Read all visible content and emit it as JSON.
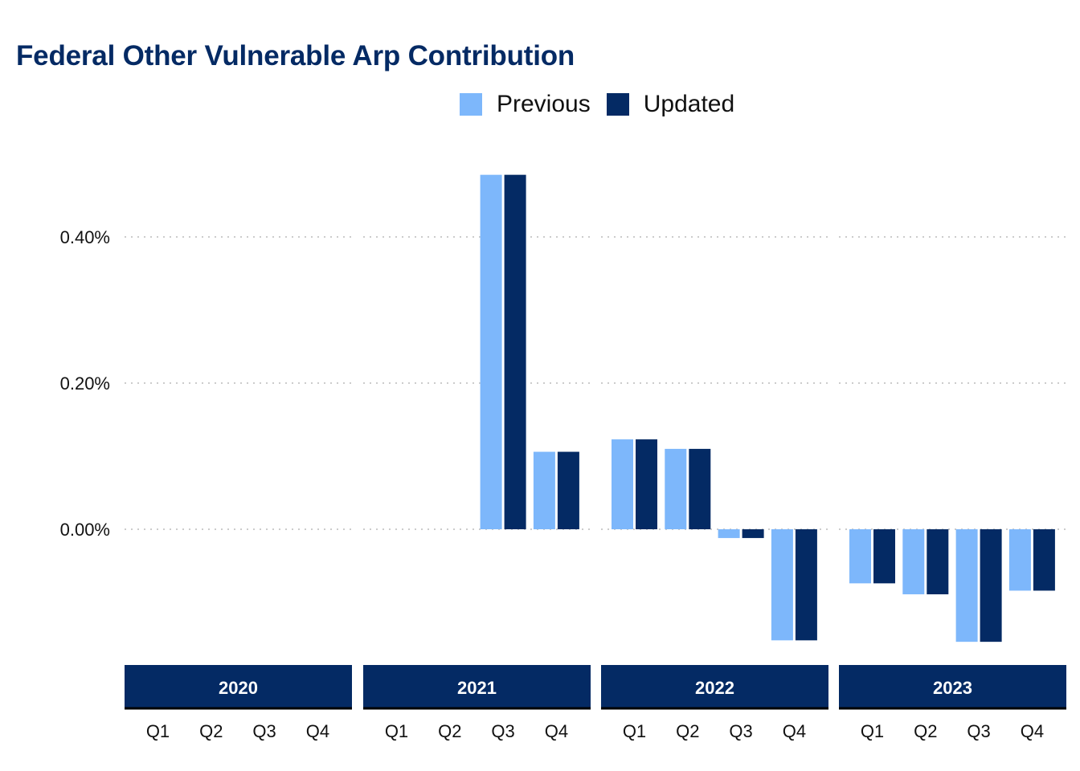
{
  "title": "Federal Other Vulnerable Arp Contribution",
  "colors": {
    "previous": "#7db7fb",
    "updated": "#042a64",
    "strip": "#042a64",
    "grid": "#cccccc",
    "title": "#042a64"
  },
  "chart_data": {
    "type": "bar",
    "title": "Federal Other Vulnerable Arp Contribution",
    "legend": {
      "placement": "top",
      "entries": [
        "Previous",
        "Updated"
      ]
    },
    "y_tick_labels": [
      "0.40%",
      "0.20%",
      "0.00%"
    ],
    "y_ticks": [
      0.4,
      0.2,
      0.0
    ],
    "ylim": [
      -0.17,
      0.5
    ],
    "grid": "horizontal dotted",
    "quarters": [
      "Q1",
      "Q2",
      "Q3",
      "Q4"
    ],
    "panels": [
      {
        "year": "2020",
        "previous": [
          null,
          null,
          null,
          null
        ],
        "updated": [
          null,
          null,
          null,
          null
        ]
      },
      {
        "year": "2021",
        "previous": [
          null,
          null,
          0.485,
          0.106
        ],
        "updated": [
          null,
          null,
          0.485,
          0.106
        ]
      },
      {
        "year": "2022",
        "previous": [
          0.123,
          0.11,
          -0.012,
          -0.152
        ],
        "updated": [
          0.123,
          0.11,
          -0.012,
          -0.152
        ]
      },
      {
        "year": "2023",
        "previous": [
          -0.074,
          -0.089,
          -0.154,
          -0.084
        ],
        "updated": [
          -0.074,
          -0.089,
          -0.154,
          -0.084
        ]
      }
    ],
    "series": [
      {
        "name": "Previous"
      },
      {
        "name": "Updated"
      }
    ]
  }
}
